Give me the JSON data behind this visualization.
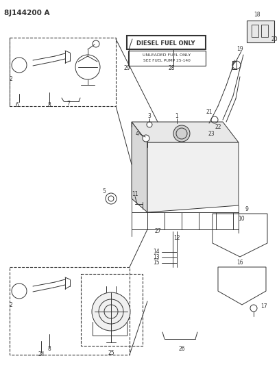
{
  "title": "8J144200 A",
  "bg_color": "#ffffff",
  "line_color": "#333333",
  "figsize": [
    4.07,
    5.33
  ],
  "dpi": 100,
  "diesel_text": "DIESEL FUEL ONLY",
  "unleaded_text": "UNLEADED FUEL ONLY\nSEE FUEL PUMP 25-140"
}
